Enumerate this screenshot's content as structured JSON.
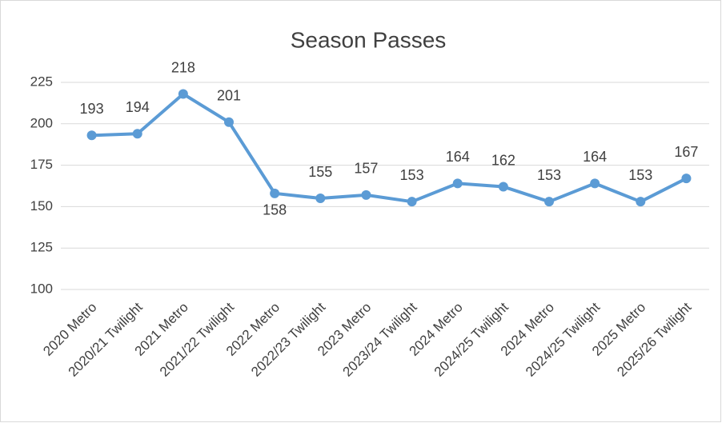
{
  "chart_data": {
    "type": "line",
    "title": "Season Passes",
    "categories": [
      "2020 Metro",
      "2020/21 Twilight",
      "2021 Metro",
      "2021/22 Twilight",
      "2022 Metro",
      "2022/23 Twilight",
      "2023 Metro",
      "2023/24 Twilight",
      "2024 Metro",
      "2024/25 Twilight",
      "2024 Metro",
      "2024/25 Twilight",
      "2025 Metro",
      "2025/26 Twilight"
    ],
    "series": [
      {
        "name": "Season Passes",
        "color": "#5b9bd5",
        "values": [
          193,
          194,
          218,
          201,
          158,
          155,
          157,
          153,
          164,
          162,
          153,
          164,
          153,
          167
        ]
      }
    ],
    "ylim": [
      100,
      225
    ],
    "yticks": [
      100,
      125,
      150,
      175,
      200,
      225
    ],
    "grid": true
  }
}
